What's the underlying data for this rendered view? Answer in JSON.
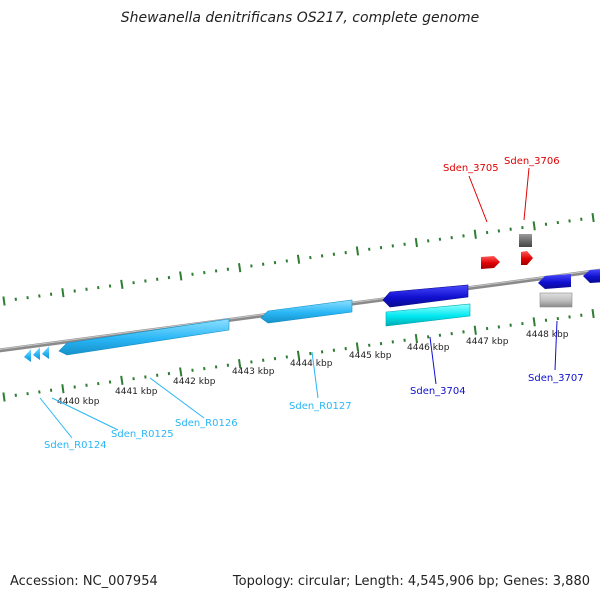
{
  "title": "Shewanella denitrificans OS217, complete genome",
  "footer": {
    "accession": "Accession: NC_007954",
    "stats": "Topology: circular; Length: 4,545,906 bp; Genes: 3,880"
  },
  "colors": {
    "backbone": "#808080",
    "tick_ring": "#2e7d32",
    "rrna_cyan": "#29b6f6",
    "cds_blue": "#1010d0",
    "cds_red": "#e00000",
    "cds_cyan": "#00e8f0",
    "pseudo_grey": "#bdbdbd",
    "dark_grey": "#6a6a6a"
  },
  "scale_labels": [
    "4440 kbp",
    "4441 kbp",
    "4442 kbp",
    "4443 kbp",
    "4444 kbp",
    "4445 kbp",
    "4446 kbp",
    "4447 kbp",
    "4448 kbp"
  ],
  "gene_labels": [
    {
      "text": "Sden_R0124",
      "color": "#29b6f6"
    },
    {
      "text": "Sden_R0125",
      "color": "#29b6f6"
    },
    {
      "text": "Sden_R0126",
      "color": "#29b6f6"
    },
    {
      "text": "Sden_R0127",
      "color": "#29b6f6"
    },
    {
      "text": "Sden_3704",
      "color": "#1010d0"
    },
    {
      "text": "Sden_3705",
      "color": "#e00000"
    },
    {
      "text": "Sden_3706",
      "color": "#e00000"
    },
    {
      "text": "Sden_3707",
      "color": "#1010d0"
    }
  ]
}
